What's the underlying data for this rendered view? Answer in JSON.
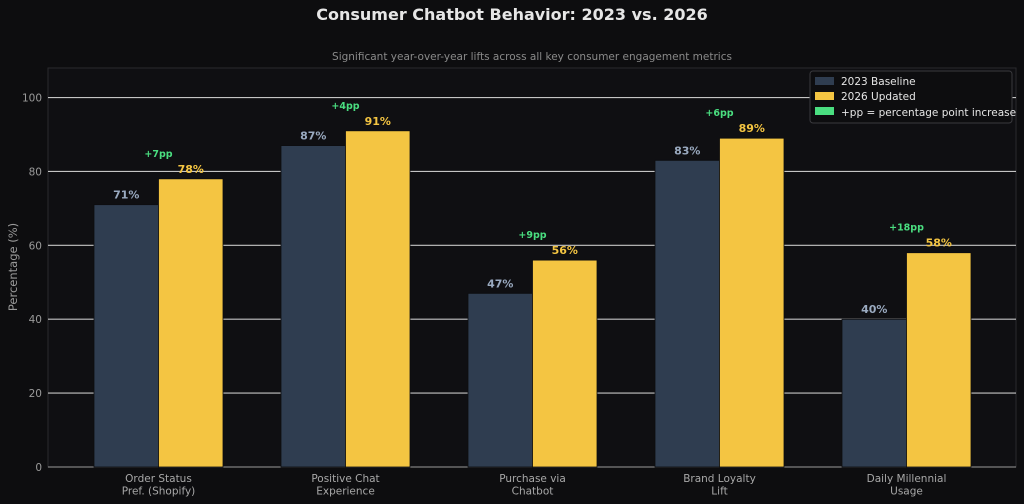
{
  "chart_data": {
    "type": "bar",
    "title": "Consumer Chatbot Behavior: 2023 vs. 2026",
    "subtitle": "Significant year-over-year lifts across all key consumer engagement metrics",
    "ylabel": "Percentage (%)",
    "ylim": [
      0,
      108
    ],
    "yticks": [
      0,
      20,
      40,
      60,
      80,
      100
    ],
    "grid": true,
    "legend_position": "top-right",
    "categories": [
      [
        "Order Status",
        "Pref. (Shopify)"
      ],
      [
        "Positive Chat",
        "Experience"
      ],
      [
        "Purchase via",
        "Chatbot"
      ],
      [
        "Brand Loyalty",
        "Lift"
      ],
      [
        "Daily Millennial",
        "Usage"
      ]
    ],
    "series": [
      {
        "name": "2023 Baseline",
        "color": "#2f3d50",
        "values": [
          71,
          87,
          47,
          83,
          40
        ],
        "labels": [
          "71%",
          "87%",
          "47%",
          "83%",
          "40%"
        ]
      },
      {
        "name": "2026 Updated",
        "color": "#f4c542",
        "values": [
          78,
          91,
          56,
          89,
          58
        ],
        "labels": [
          "78%",
          "91%",
          "56%",
          "89%",
          "58%"
        ]
      }
    ],
    "increase_labels": [
      "+7pp",
      "+4pp",
      "+9pp",
      "+6pp",
      "+18pp"
    ],
    "increase_legend": {
      "label": "+pp = percentage point increase",
      "color": "#4ade80"
    }
  }
}
